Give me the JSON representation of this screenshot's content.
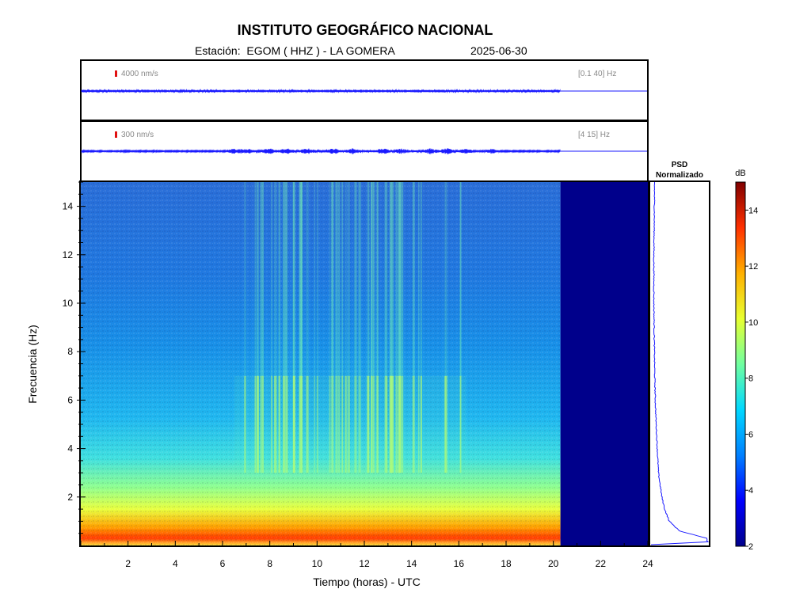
{
  "header": {
    "title": "INSTITUTO GEOGRÁFICO NACIONAL",
    "station_line": "Estación:  EGOM ( HHZ ) - LA GOMERA",
    "date": "2025-06-30"
  },
  "colors": {
    "trace": "#1a1aff",
    "scale_bar": "#e01010",
    "no_data": "#00008b",
    "colormap": [
      "#00008b",
      "#0000ff",
      "#0080ff",
      "#00d8ff",
      "#70ffa0",
      "#e8ff30",
      "#ffb000",
      "#ff3000",
      "#800000"
    ]
  },
  "chart_data": [
    {
      "type": "line",
      "name": "trace_broadband",
      "scale_label": "4000 nm/s",
      "band_label": "[0.1 40] Hz",
      "xlim": [
        0,
        24
      ],
      "data_end_hour": 20.3
    },
    {
      "type": "line",
      "name": "trace_filtered",
      "scale_label": "300 nm/s",
      "band_label": "[4 15] Hz",
      "xlim": [
        0,
        24
      ],
      "data_end_hour": 20.3,
      "bursts_hours": [
        6.5,
        7.0,
        8.0,
        8.7,
        9.6,
        10.7,
        11.5,
        12.8,
        13.6,
        14.8,
        15.5,
        16.3,
        17.4
      ]
    },
    {
      "type": "heatmap",
      "name": "spectrogram",
      "xlabel": "Tiempo (horas) - UTC",
      "ylabel": "Frecuencia  (Hz)",
      "xlim": [
        0,
        24
      ],
      "ylim": [
        0,
        15
      ],
      "xticks": [
        2,
        4,
        6,
        8,
        10,
        12,
        14,
        16,
        18,
        20,
        22,
        24
      ],
      "yticks": [
        2,
        4,
        6,
        8,
        10,
        12,
        14
      ],
      "data_end_hour": 20.3,
      "activity_band_hours": [
        6.5,
        16.3
      ],
      "activity_freq_hz": [
        3,
        7
      ]
    },
    {
      "type": "line",
      "name": "psd",
      "title_lines": [
        "PSD",
        "Normalizado"
      ],
      "profile": [
        [
          0.1,
          1.0
        ],
        [
          0.3,
          0.97
        ],
        [
          0.6,
          0.5
        ],
        [
          1.0,
          0.32
        ],
        [
          1.5,
          0.24
        ],
        [
          2.0,
          0.19
        ],
        [
          2.5,
          0.16
        ],
        [
          3.0,
          0.13
        ],
        [
          4.0,
          0.11
        ],
        [
          5.0,
          0.09
        ],
        [
          6.0,
          0.075
        ],
        [
          7.0,
          0.065
        ],
        [
          8.0,
          0.06
        ],
        [
          9.0,
          0.055
        ],
        [
          10.0,
          0.05
        ],
        [
          11.0,
          0.05
        ],
        [
          12.0,
          0.05
        ],
        [
          13.0,
          0.055
        ],
        [
          14.0,
          0.06
        ],
        [
          15.0,
          0.06
        ]
      ]
    },
    {
      "type": "heatmap",
      "name": "colorbar",
      "unit_label": "dB",
      "range": [
        2,
        15
      ],
      "ticks": [
        2,
        4,
        6,
        8,
        10,
        12,
        14
      ]
    }
  ]
}
